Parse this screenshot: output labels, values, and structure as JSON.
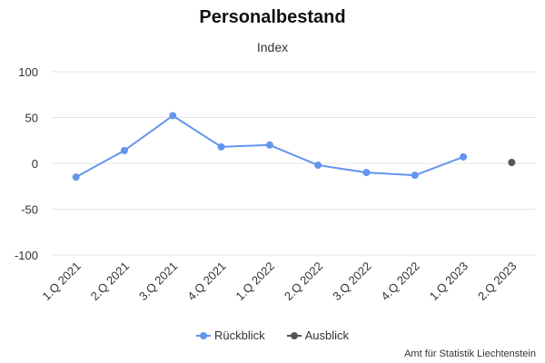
{
  "chart_data": {
    "type": "line",
    "title": "Personalbestand",
    "subtitle": "Index",
    "categories": [
      "1.Q 2021",
      "2.Q 2021",
      "3.Q 2021",
      "4.Q 2021",
      "1.Q 2022",
      "2.Q 2022",
      "3.Q 2022",
      "4.Q 2022",
      "1.Q 2023",
      "2.Q 2023"
    ],
    "series": [
      {
        "name": "Rückblick",
        "color": "#6495ED",
        "values": [
          -15,
          14,
          52,
          18,
          20,
          -2,
          -10,
          -13,
          7,
          null
        ]
      },
      {
        "name": "Ausblick",
        "color": "#555555",
        "values": [
          null,
          null,
          null,
          null,
          null,
          null,
          null,
          null,
          null,
          1
        ]
      }
    ],
    "ylim": [
      -100,
      100
    ],
    "yticks": [
      100,
      50,
      0,
      -50,
      -100
    ],
    "ytick_labels": [
      "100",
      "50",
      "0",
      "-50",
      "-100"
    ],
    "grid": true,
    "legend_position": "bottom"
  },
  "credits": "Amt für Statistik Liechtenstein"
}
